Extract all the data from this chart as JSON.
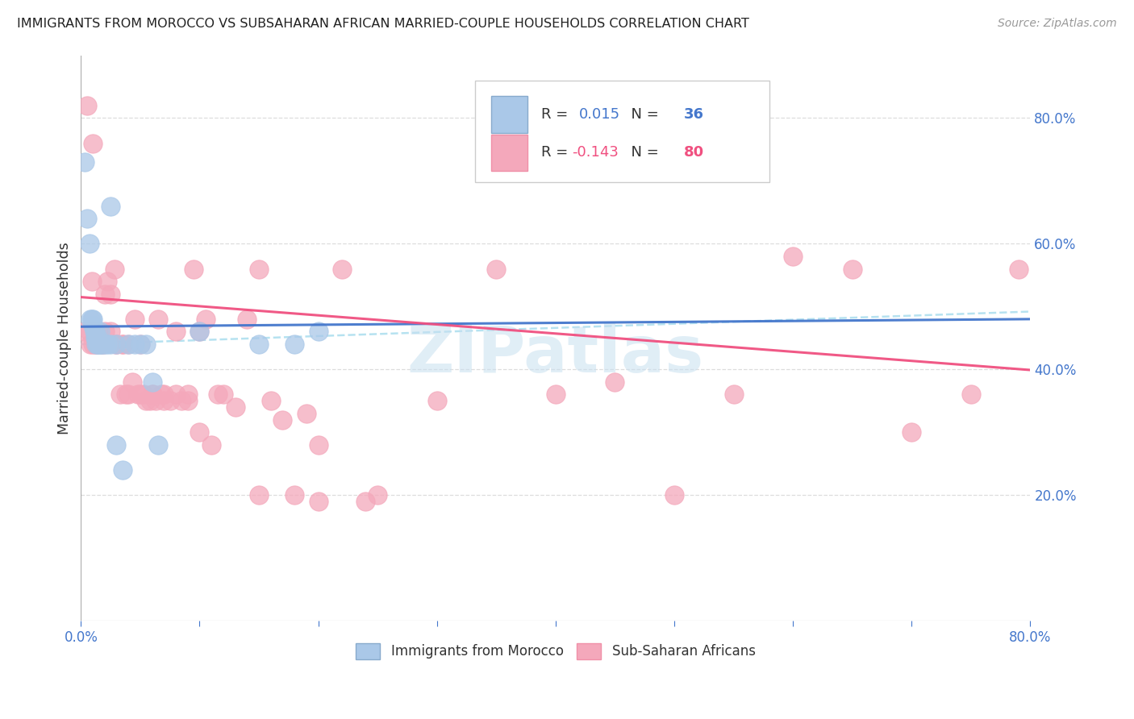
{
  "title": "IMMIGRANTS FROM MOROCCO VS SUBSAHARAN AFRICAN MARRIED-COUPLE HOUSEHOLDS CORRELATION CHART",
  "source": "Source: ZipAtlas.com",
  "ylabel": "Married-couple Households",
  "xlim": [
    0.0,
    0.8
  ],
  "ylim": [
    0.0,
    0.9
  ],
  "morocco_R": 0.015,
  "morocco_N": 36,
  "subsaharan_R": -0.143,
  "subsaharan_N": 80,
  "morocco_color": "#aac8e8",
  "subsaharan_color": "#f4a8bb",
  "morocco_line_color": "#4477cc",
  "subsaharan_line_color": "#f05080",
  "dashed_line_color": "#aaddee",
  "background_color": "#ffffff",
  "grid_color": "#dddddd",
  "watermark": "ZIPatlas",
  "watermark_color": "#c8e0f0",
  "morocco_x": [
    0.003,
    0.005,
    0.007,
    0.008,
    0.009,
    0.01,
    0.011,
    0.012,
    0.013,
    0.014,
    0.015,
    0.016,
    0.017,
    0.018,
    0.02,
    0.022,
    0.025,
    0.03,
    0.035,
    0.04,
    0.045,
    0.05,
    0.055,
    0.06,
    0.065,
    0.01,
    0.012,
    0.013,
    0.014,
    0.016,
    0.1,
    0.15,
    0.18,
    0.2,
    0.025,
    0.03
  ],
  "morocco_y": [
    0.73,
    0.64,
    0.6,
    0.48,
    0.48,
    0.48,
    0.46,
    0.45,
    0.44,
    0.44,
    0.44,
    0.44,
    0.44,
    0.44,
    0.44,
    0.44,
    0.44,
    0.44,
    0.24,
    0.44,
    0.44,
    0.44,
    0.44,
    0.38,
    0.28,
    0.47,
    0.46,
    0.45,
    0.45,
    0.46,
    0.46,
    0.44,
    0.44,
    0.46,
    0.66,
    0.28
  ],
  "subsaharan_x": [
    0.003,
    0.005,
    0.007,
    0.009,
    0.01,
    0.012,
    0.013,
    0.015,
    0.018,
    0.02,
    0.022,
    0.025,
    0.028,
    0.03,
    0.033,
    0.035,
    0.038,
    0.04,
    0.043,
    0.045,
    0.048,
    0.05,
    0.053,
    0.055,
    0.058,
    0.06,
    0.063,
    0.065,
    0.068,
    0.07,
    0.075,
    0.08,
    0.085,
    0.09,
    0.095,
    0.1,
    0.105,
    0.11,
    0.115,
    0.12,
    0.13,
    0.14,
    0.15,
    0.16,
    0.17,
    0.18,
    0.19,
    0.2,
    0.22,
    0.24,
    0.25,
    0.3,
    0.35,
    0.4,
    0.45,
    0.5,
    0.55,
    0.6,
    0.65,
    0.7,
    0.75,
    0.79,
    0.008,
    0.01,
    0.012,
    0.015,
    0.018,
    0.02,
    0.025,
    0.03,
    0.035,
    0.04,
    0.05,
    0.06,
    0.07,
    0.08,
    0.09,
    0.1,
    0.15,
    0.2
  ],
  "subsaharan_y": [
    0.46,
    0.82,
    0.46,
    0.54,
    0.76,
    0.46,
    0.44,
    0.46,
    0.44,
    0.46,
    0.54,
    0.46,
    0.56,
    0.44,
    0.36,
    0.44,
    0.36,
    0.36,
    0.38,
    0.48,
    0.36,
    0.36,
    0.36,
    0.35,
    0.35,
    0.36,
    0.35,
    0.48,
    0.36,
    0.35,
    0.35,
    0.46,
    0.35,
    0.35,
    0.56,
    0.3,
    0.48,
    0.28,
    0.36,
    0.36,
    0.34,
    0.48,
    0.56,
    0.35,
    0.32,
    0.2,
    0.33,
    0.28,
    0.56,
    0.19,
    0.2,
    0.35,
    0.56,
    0.36,
    0.38,
    0.2,
    0.36,
    0.58,
    0.56,
    0.3,
    0.36,
    0.56,
    0.44,
    0.44,
    0.44,
    0.44,
    0.44,
    0.52,
    0.52,
    0.44,
    0.44,
    0.44,
    0.44,
    0.36,
    0.36,
    0.36,
    0.36,
    0.46,
    0.2,
    0.19
  ],
  "morocco_trend_intercept": 0.468,
  "morocco_trend_slope": 0.015,
  "ss_trend_intercept": 0.515,
  "ss_trend_slope": -0.145,
  "dashed_trend_intercept": 0.44,
  "dashed_trend_slope": 0.065
}
